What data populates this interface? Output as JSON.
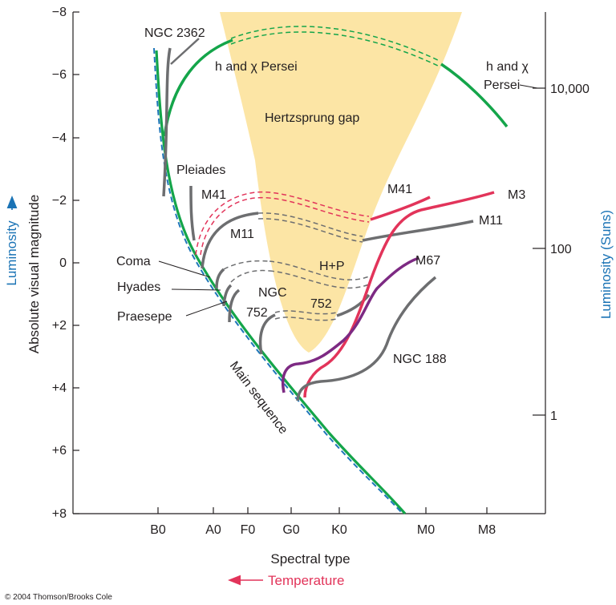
{
  "chart_data": {
    "type": "line",
    "title": "",
    "xlabel": "Spectral type",
    "x_arrow_label": "Temperature",
    "ylabel": "Absolute visual magnitude",
    "y_arrow_label": "Luminosity",
    "right_ylabel": "Luminosity (Suns)",
    "y_ticks": [
      "−8",
      "−6",
      "−4",
      "−2",
      "0",
      "+2",
      "+4",
      "+6",
      "+8"
    ],
    "x_ticks": [
      "B0",
      "A0",
      "F0",
      "G0",
      "K0",
      "M0",
      "M8"
    ],
    "right_ticks": [
      "10,000",
      "100",
      "1"
    ],
    "ylim": [
      8,
      -8
    ],
    "right_scale": "log",
    "shaded_region": "Hertzsprung gap",
    "clusters": [
      "NGC 2362",
      "h and χ Persei",
      "Pleiades",
      "M41",
      "M11",
      "Coma",
      "Hyades",
      "Praesepe",
      "NGC 752",
      "H+P",
      "M67",
      "M3",
      "NGC 188"
    ],
    "main_sequence": "Main sequence",
    "labels": {
      "ngc2362": "NGC 2362",
      "hchi_top": "h and χ Persei",
      "hchi_right_1": "h and χ",
      "hchi_right_2": "Persei",
      "gap": "Hertzsprung gap",
      "pleiades": "Pleiades",
      "m41_left": "M41",
      "m41_right": "M41",
      "m11_left": "M11",
      "m11_right": "M11",
      "m3": "M3",
      "coma": "Coma",
      "hyades": "Hyades",
      "praesepe": "Praesepe",
      "ngc_a": "NGC",
      "ngc_b": "752",
      "hp": "H+P",
      "n752": "752",
      "m67": "M67",
      "ngc188": "NGC 188",
      "ms": "Main sequence"
    },
    "colors": {
      "gap": "#fce5a5",
      "h_chi_persei": "#14a54a",
      "m3": "#e2345a",
      "m41": "#e2345a",
      "m67": "#7d2a83",
      "gray_clusters": "#6d6e70",
      "main_sequence_dash": "#1f77b9",
      "luminosity": "#1a73b5",
      "temperature": "#e2345a"
    }
  },
  "credit": "© 2004 Thomson/Brooks Cole"
}
